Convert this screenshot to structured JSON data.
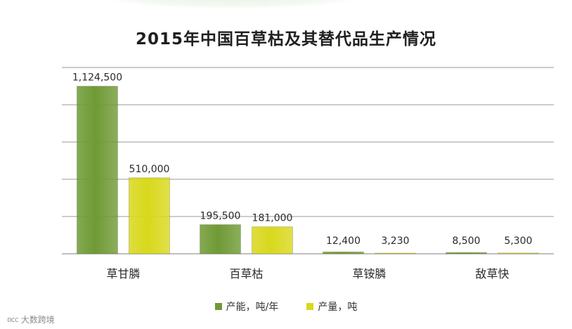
{
  "chart_data": {
    "type": "bar",
    "title": "2015年中国百草枯及其替代品生产情况",
    "categories": [
      "草甘膦",
      "百草枯",
      "草铵膦",
      "敌草快"
    ],
    "series": [
      {
        "name": "产能，吨/年",
        "color": "#6f9a35",
        "values": [
          1124500,
          195500,
          12400,
          8500
        ],
        "labels": [
          "1,124,500",
          "195,500",
          "12,400",
          "8,500"
        ]
      },
      {
        "name": "产量，吨",
        "color": "#d8d81c",
        "values": [
          510000,
          181000,
          3230,
          5300
        ],
        "labels": [
          "510,000",
          "181,000",
          "3,230",
          "5,300"
        ]
      }
    ],
    "ylim": [
      0,
      1250000
    ],
    "grid": true,
    "y_tick_labels": false,
    "legend": "bottom-center"
  },
  "watermark": {
    "logo": "ᴅᴄᴄ",
    "text": "大数跨境"
  }
}
